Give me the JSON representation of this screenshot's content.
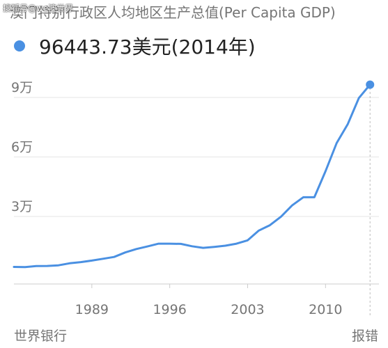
{
  "watermark": "搜狐号@we澳世界",
  "title": "澳门特别行政区人均地区生产总值(Per Capita GDP)",
  "headline": {
    "value": "96443.73美元",
    "year": "(2014年)"
  },
  "footer": {
    "source": "世界银行",
    "report": "报错"
  },
  "colors": {
    "line": "#4a90e2",
    "grid": "#e6e6e6",
    "axis_text": "#757575"
  },
  "chart_data": {
    "type": "line",
    "title": "澳门特别行政区人均地区生产总值(Per Capita GDP)",
    "xlabel": "",
    "ylabel": "",
    "xlim": [
      1982,
      2014.8
    ],
    "ylim": [
      -4000,
      97000
    ],
    "xticks": [
      1989,
      1996,
      2003,
      2010
    ],
    "xtick_labels": [
      "1989",
      "1996",
      "2003",
      "2010"
    ],
    "yticks": [
      30000,
      60000,
      90000
    ],
    "ytick_labels": [
      "3万",
      "6万",
      "9万"
    ],
    "grid": true,
    "series": [
      {
        "x": [
          1982,
          1983,
          1984,
          1985,
          1986,
          1987,
          1988,
          1989,
          1990,
          1991,
          1992,
          1993,
          1994,
          1995,
          1996,
          1997,
          1998,
          1999,
          2000,
          2001,
          2002,
          2003,
          2004,
          2005,
          2006,
          2007,
          2008,
          2009,
          2010,
          2011,
          2012,
          2013,
          2014
        ],
        "values": [
          4600,
          4500,
          5000,
          5100,
          5400,
          6400,
          7000,
          7800,
          8700,
          9600,
          11900,
          13600,
          14900,
          16300,
          16300,
          16200,
          15000,
          14200,
          14700,
          15300,
          16300,
          18000,
          22900,
          25600,
          29900,
          35600,
          39700,
          39700,
          52800,
          67000,
          76600,
          89700,
          96443.73
        ]
      }
    ],
    "highlight": {
      "x": 2014,
      "y": 96443.73
    }
  }
}
